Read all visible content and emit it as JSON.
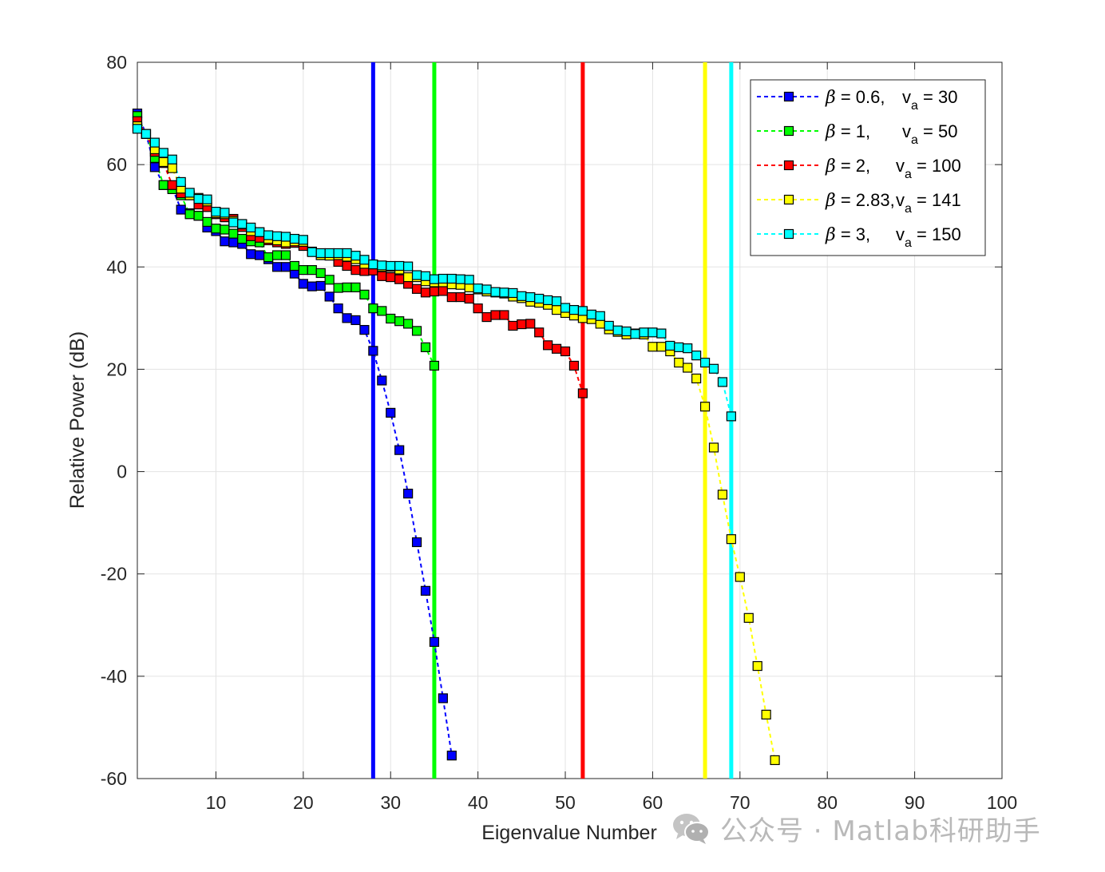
{
  "chart_data": {
    "type": "line",
    "xlabel": "Eigenvalue Number",
    "ylabel": "Relative Power (dB)",
    "xlim": [
      1,
      100
    ],
    "ylim": [
      -60,
      80
    ],
    "xticks": [
      10,
      20,
      30,
      40,
      50,
      60,
      70,
      80,
      90,
      100
    ],
    "yticks": [
      -60,
      -40,
      -20,
      0,
      20,
      40,
      60,
      80
    ],
    "grid": true,
    "legend_position": "top-right",
    "series": [
      {
        "name": "β = 0.6, v_a = 30",
        "legend": {
          "beta": "0.6,",
          "v": "30"
        },
        "color": "#0000ff",
        "vline": 28,
        "x": [
          1,
          2,
          3,
          4,
          5,
          6,
          7,
          8,
          9,
          10,
          11,
          12,
          13,
          14,
          15,
          16,
          17,
          18,
          19,
          20,
          21,
          22,
          23,
          24,
          25,
          26,
          27,
          28,
          29,
          30,
          31,
          32,
          33,
          34,
          35,
          36,
          37
        ],
        "y": [
          70,
          66,
          59.5,
          56,
          55.5,
          51.2,
          50.5,
          50,
          47.7,
          47,
          45,
          44.8,
          44.5,
          42.5,
          42.3,
          41.5,
          40,
          40,
          38.7,
          36.7,
          36.2,
          36.3,
          34.2,
          31.9,
          30,
          29.6,
          27.7,
          23.6,
          17.8,
          11.5,
          4.2,
          -4.3,
          -13.8,
          -23.3,
          -33.3,
          -44.3,
          -55.5
        ]
      },
      {
        "name": "β = 1, v_a = 50",
        "legend": {
          "beta": "1,",
          "v": "50"
        },
        "color": "#00ff00",
        "vline": 35,
        "x": [
          1,
          2,
          3,
          4,
          5,
          6,
          7,
          8,
          9,
          10,
          11,
          12,
          13,
          14,
          15,
          16,
          17,
          18,
          19,
          20,
          21,
          22,
          23,
          24,
          25,
          26,
          27,
          28,
          29,
          30,
          31,
          32,
          33,
          34,
          35
        ],
        "y": [
          69.5,
          66,
          61.3,
          56,
          55.2,
          54,
          50.3,
          50,
          48.8,
          47.5,
          47.3,
          46.5,
          45.5,
          45,
          44.8,
          41.9,
          42.3,
          42.3,
          40.2,
          39.4,
          39.4,
          38.8,
          37.5,
          35.9,
          36,
          36,
          34.6,
          31.9,
          31.4,
          29.9,
          29.4,
          28.9,
          27.5,
          24.3,
          20.7
        ]
      },
      {
        "name": "β = 2, v_a = 100",
        "legend": {
          "beta": "2,",
          "v": "100"
        },
        "color": "#ff0000",
        "vline": 52,
        "x": [
          1,
          2,
          3,
          4,
          5,
          6,
          7,
          8,
          9,
          10,
          11,
          12,
          13,
          14,
          15,
          16,
          17,
          18,
          19,
          20,
          21,
          22,
          23,
          24,
          25,
          26,
          27,
          28,
          29,
          30,
          31,
          32,
          33,
          34,
          35,
          36,
          37,
          38,
          39,
          40,
          41,
          42,
          43,
          44,
          45,
          46,
          47,
          48,
          49,
          50,
          51,
          52
        ],
        "y": [
          68.5,
          66,
          62.5,
          60.3,
          56,
          54.4,
          54,
          52.2,
          51.7,
          50.3,
          49.7,
          49.4,
          47.8,
          46,
          45.7,
          45.2,
          44.8,
          44.5,
          44.7,
          44.1,
          43,
          42.3,
          42.3,
          41,
          40.2,
          39.4,
          39.2,
          39.3,
          38.2,
          38,
          37.6,
          36.7,
          35.7,
          35,
          35.2,
          35.3,
          34.1,
          34.1,
          33.8,
          31.9,
          30.2,
          30.6,
          30.6,
          28.5,
          28.8,
          28.9,
          27.2,
          24.7,
          24,
          23.5,
          20.7,
          15.3
        ]
      },
      {
        "name": "β = 2.83, v_a = 141",
        "legend": {
          "beta": "2.83,",
          "v": "141"
        },
        "color": "#ffff00",
        "vline": 66,
        "x": [
          1,
          2,
          3,
          4,
          5,
          6,
          7,
          8,
          9,
          10,
          11,
          12,
          13,
          14,
          15,
          16,
          17,
          18,
          19,
          20,
          21,
          22,
          23,
          24,
          25,
          26,
          27,
          28,
          29,
          30,
          31,
          32,
          33,
          34,
          35,
          36,
          37,
          38,
          39,
          40,
          41,
          42,
          43,
          44,
          45,
          46,
          47,
          48,
          49,
          50,
          51,
          52,
          53,
          54,
          55,
          56,
          57,
          58,
          59,
          60,
          61,
          62,
          63,
          64,
          65,
          66,
          67,
          68,
          69,
          70,
          71,
          72,
          73,
          74
        ],
        "y": [
          67.5,
          66,
          63,
          60.5,
          59.3,
          55.3,
          54,
          53.5,
          52.8,
          50.5,
          50.3,
          49,
          48.3,
          47,
          46.8,
          45.5,
          45.2,
          44.8,
          45,
          44.9,
          43,
          42.3,
          42.2,
          42.3,
          42,
          41.5,
          40.6,
          40.5,
          40,
          40,
          39.5,
          38,
          38,
          37.2,
          37,
          37,
          36.6,
          36.5,
          36,
          35.6,
          35.2,
          35,
          34.8,
          34.2,
          33.9,
          33.2,
          33,
          32.6,
          31.6,
          31,
          30.5,
          30,
          29.8,
          28.9,
          27.8,
          27.3,
          26.8,
          27,
          26.8,
          24.4,
          24.4,
          23.5,
          21.3,
          20.3,
          18.2,
          12.7,
          4.7,
          -4.5,
          -13.2,
          -20.6,
          -28.6,
          -38,
          -47.5,
          -56.4
        ]
      },
      {
        "name": "β = 3, v_a = 150",
        "legend": {
          "beta": "3,",
          "v": "150"
        },
        "color": "#00ffff",
        "vline": 69,
        "x": [
          1,
          2,
          3,
          4,
          5,
          6,
          7,
          8,
          9,
          10,
          11,
          12,
          13,
          14,
          15,
          16,
          17,
          18,
          19,
          20,
          21,
          22,
          23,
          24,
          25,
          26,
          27,
          28,
          29,
          30,
          31,
          32,
          33,
          34,
          35,
          36,
          37,
          38,
          39,
          40,
          41,
          42,
          43,
          44,
          45,
          46,
          47,
          48,
          49,
          50,
          51,
          52,
          53,
          54,
          55,
          56,
          57,
          58,
          59,
          60,
          61,
          62,
          63,
          64,
          65,
          66,
          67,
          68,
          69
        ],
        "y": [
          67,
          66,
          64.3,
          62.3,
          61,
          56.6,
          54.5,
          53.3,
          53.2,
          50.8,
          50.6,
          48.7,
          48.4,
          47.7,
          46.8,
          46.2,
          46,
          45.9,
          45.5,
          45.3,
          42.9,
          42.7,
          42.7,
          42.7,
          42.7,
          42.2,
          41.4,
          40.5,
          40.3,
          40.2,
          40.2,
          40.1,
          38.4,
          38.2,
          37.6,
          37.7,
          37.7,
          37.6,
          37.5,
          35.8,
          35.6,
          35.1,
          35,
          34.9,
          34.3,
          34.1,
          33.8,
          33.5,
          33.3,
          32,
          31.6,
          31.4,
          30.7,
          30.4,
          28.5,
          27.6,
          27.4,
          26.9,
          27.2,
          27.2,
          27,
          24.6,
          24.3,
          24.1,
          22.7,
          21.3,
          20.1,
          17.5,
          10.8
        ]
      }
    ]
  },
  "watermark": {
    "text": "公众号 · Matlab科研助手",
    "icon": "wechat-icon"
  }
}
